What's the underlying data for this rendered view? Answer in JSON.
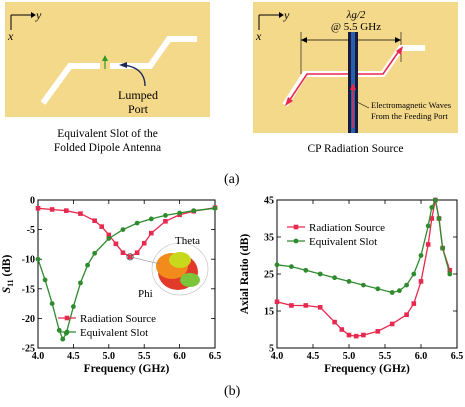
{
  "figure": {
    "panel_a_label": "(a)",
    "panel_b_label": "(b)",
    "left_panel": {
      "axis_y": "y",
      "axis_x": "x",
      "port_label_line1": "Lumped",
      "port_label_line2": "Port",
      "caption_line1": "Equivalent Slot of the",
      "caption_line2": "Folded Dipole Antenna"
    },
    "right_panel": {
      "axis_y": "y",
      "axis_x": "x",
      "dim_label_top": "λg/2",
      "dim_label_bottom": "@ 5.5 GHz",
      "wave_label_line1": "Electromagnetic Waves",
      "wave_label_line2": "From the Feeding Port",
      "caption": "CP Radiation Source"
    },
    "colors": {
      "background": "#f5d98b",
      "radiation_source": "#e8294f",
      "equivalent_slot": "#2e8b2e",
      "feed_line": "#1a1a3a",
      "feed_center": "#2860b0",
      "arrow": "#e8294f"
    }
  },
  "chart_data": [
    {
      "type": "line",
      "xlabel": "Frequency (GHz)",
      "ylabel": "S11 (dB)",
      "xlim": [
        4.0,
        6.5
      ],
      "ylim": [
        -25,
        0
      ],
      "xticks": [
        "4.0",
        "4.5",
        "5.0",
        "5.5",
        "6.0",
        "6.5"
      ],
      "yticks": [
        "0",
        "-5",
        "-10",
        "-15",
        "-20",
        "-25"
      ],
      "legend": "bottom-left",
      "inset_labels": {
        "theta": "Theta",
        "phi": "Phi"
      },
      "series": [
        {
          "name": "Radiation Source",
          "marker": "square",
          "color": "#e8294f",
          "x": [
            4.0,
            4.2,
            4.4,
            4.6,
            4.8,
            4.9,
            5.0,
            5.1,
            5.2,
            5.3,
            5.4,
            5.5,
            5.6,
            5.8,
            6.0,
            6.2,
            6.5
          ],
          "y": [
            -1.4,
            -1.6,
            -1.8,
            -2.3,
            -3.5,
            -4.5,
            -5.9,
            -7.4,
            -8.9,
            -9.6,
            -8.9,
            -7.3,
            -5.6,
            -3.6,
            -2.5,
            -1.9,
            -1.3
          ]
        },
        {
          "name": "Equivalent Slot",
          "marker": "circle",
          "color": "#2e8b2e",
          "x": [
            4.0,
            4.1,
            4.2,
            4.3,
            4.35,
            4.4,
            4.5,
            4.6,
            4.7,
            4.8,
            5.0,
            5.2,
            5.4,
            5.6,
            5.8,
            6.0,
            6.2,
            6.5
          ],
          "y": [
            -10.0,
            -13.5,
            -17.5,
            -22.0,
            -23.5,
            -22.5,
            -18.0,
            -14.0,
            -11.0,
            -9.0,
            -6.5,
            -5.0,
            -3.9,
            -3.2,
            -2.6,
            -2.2,
            -1.8,
            -1.4
          ]
        }
      ]
    },
    {
      "type": "line",
      "xlabel": "Frequency (GHz)",
      "ylabel": "Axial Ratio (dB)",
      "xlim": [
        4.0,
        6.5
      ],
      "ylim": [
        5,
        45
      ],
      "xticks": [
        "4.0",
        "4.5",
        "5.0",
        "5.5",
        "6.0",
        "6.5"
      ],
      "yticks": [
        "5",
        "15",
        "25",
        "35",
        "45"
      ],
      "legend": "top-left",
      "series": [
        {
          "name": "Radiation Source",
          "marker": "square",
          "color": "#e8294f",
          "x": [
            4.0,
            4.2,
            4.4,
            4.6,
            4.8,
            4.9,
            5.0,
            5.1,
            5.2,
            5.4,
            5.6,
            5.8,
            5.9,
            6.0,
            6.1,
            6.15,
            6.2,
            6.25,
            6.3,
            6.4
          ],
          "y": [
            17.5,
            16.5,
            16.5,
            16.0,
            12.0,
            10.0,
            8.5,
            8.2,
            8.5,
            9.5,
            11.5,
            14.0,
            17.0,
            23.0,
            33.0,
            40.0,
            45.0,
            40.0,
            32.0,
            26.0
          ]
        },
        {
          "name": "Equivalent Slot",
          "marker": "circle",
          "color": "#2e8b2e",
          "x": [
            4.0,
            4.2,
            4.4,
            4.6,
            4.8,
            5.0,
            5.2,
            5.4,
            5.6,
            5.7,
            5.8,
            5.9,
            6.0,
            6.1,
            6.15,
            6.2,
            6.25,
            6.3,
            6.4
          ],
          "y": [
            27.5,
            27.0,
            26.0,
            25.0,
            24.0,
            23.0,
            22.0,
            21.0,
            20.0,
            20.5,
            22.0,
            25.0,
            30.0,
            38.0,
            43.0,
            45.0,
            40.0,
            32.0,
            25.0
          ]
        }
      ]
    }
  ]
}
